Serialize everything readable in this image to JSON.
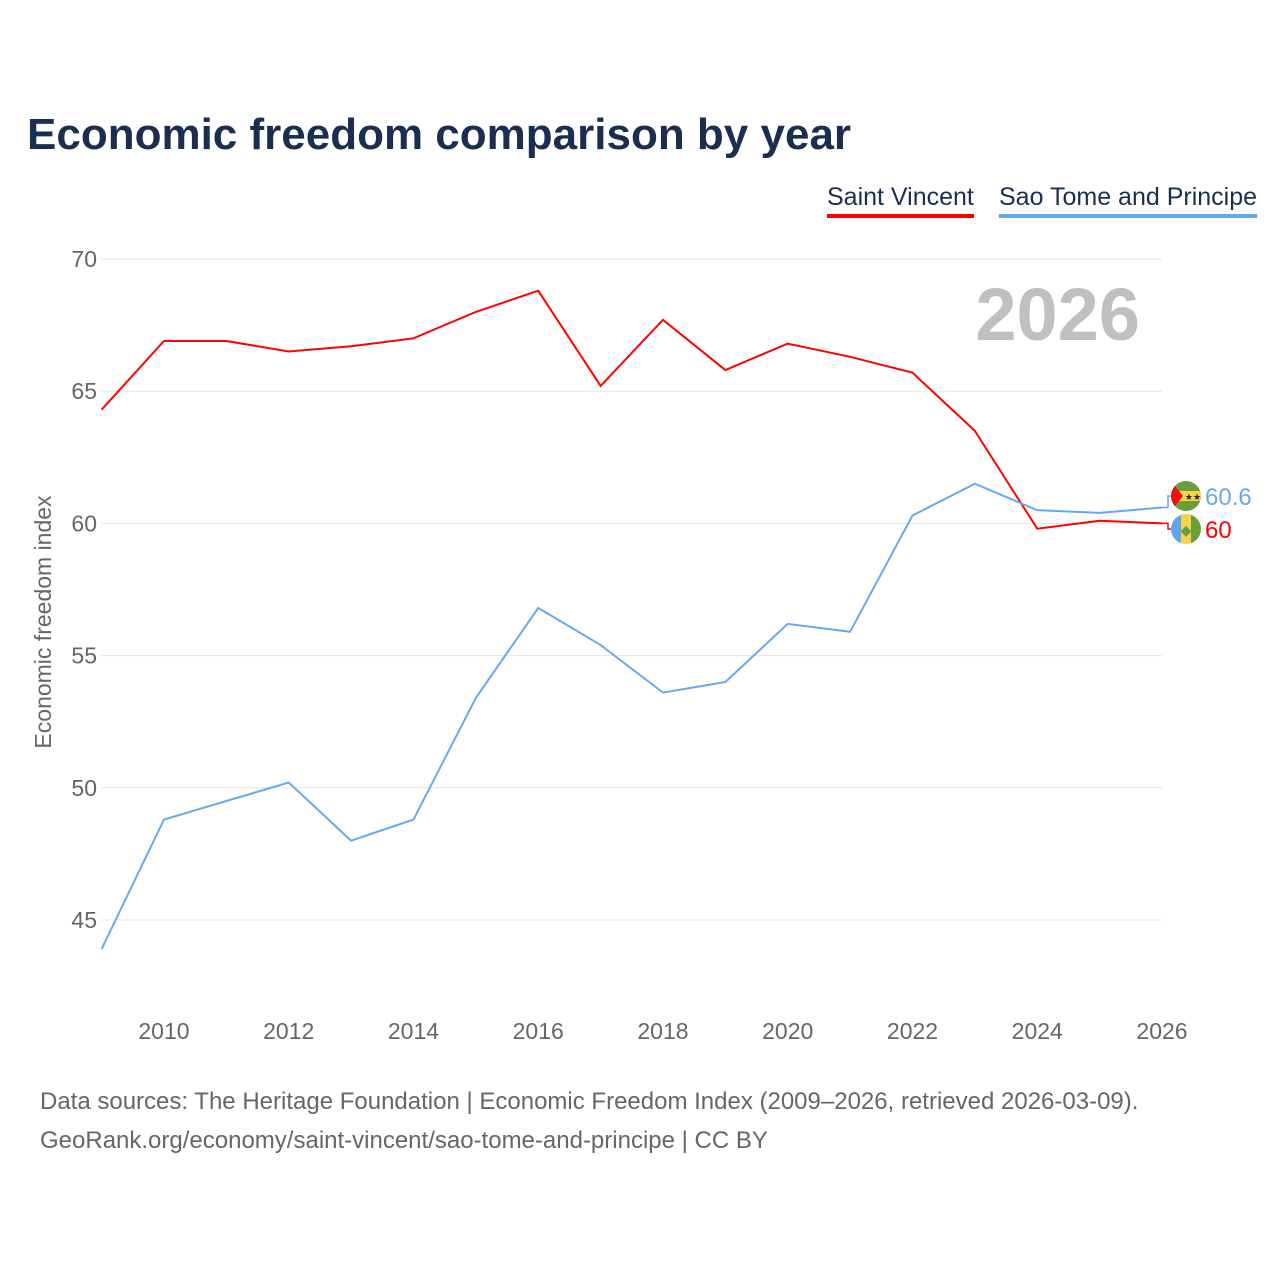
{
  "chart_data": {
    "type": "line",
    "title": "Economic freedom comparison by year",
    "xlabel": "",
    "ylabel": "Economic freedom index",
    "ylim": [
      42,
      70
    ],
    "xlim": [
      2009,
      2026
    ],
    "yticks": [
      45,
      50,
      55,
      60,
      65,
      70
    ],
    "xticks": [
      2010,
      2012,
      2014,
      2016,
      2018,
      2020,
      2022,
      2024,
      2026
    ],
    "grid": true,
    "legend_position": "top-right",
    "year_watermark": "2026",
    "x": [
      2009,
      2010,
      2011,
      2012,
      2013,
      2014,
      2015,
      2016,
      2017,
      2018,
      2019,
      2020,
      2021,
      2022,
      2023,
      2024,
      2025,
      2026
    ],
    "series": [
      {
        "name": "Saint Vincent",
        "color": "#ff0000",
        "end_label": "60",
        "values": [
          64.3,
          66.9,
          66.9,
          66.5,
          66.7,
          67.0,
          68.0,
          68.8,
          65.2,
          67.7,
          65.8,
          66.8,
          66.3,
          65.7,
          63.5,
          59.8,
          60.1,
          60.0
        ]
      },
      {
        "name": "Sao Tome and Principe",
        "color": "#66aaee",
        "end_label": "60.6",
        "values": [
          43.9,
          48.8,
          49.5,
          50.2,
          48.0,
          48.8,
          53.4,
          56.8,
          55.4,
          53.6,
          54.0,
          56.2,
          55.9,
          60.3,
          61.5,
          60.5,
          60.4,
          60.6
        ]
      }
    ]
  },
  "footer": {
    "line1": "Data sources: The Heritage Foundation | Economic Freedom Index (2009–2026, retrieved 2026-03-09).",
    "line2": "GeoRank.org/economy/saint-vincent/sao-tome-and-principe | CC BY"
  }
}
